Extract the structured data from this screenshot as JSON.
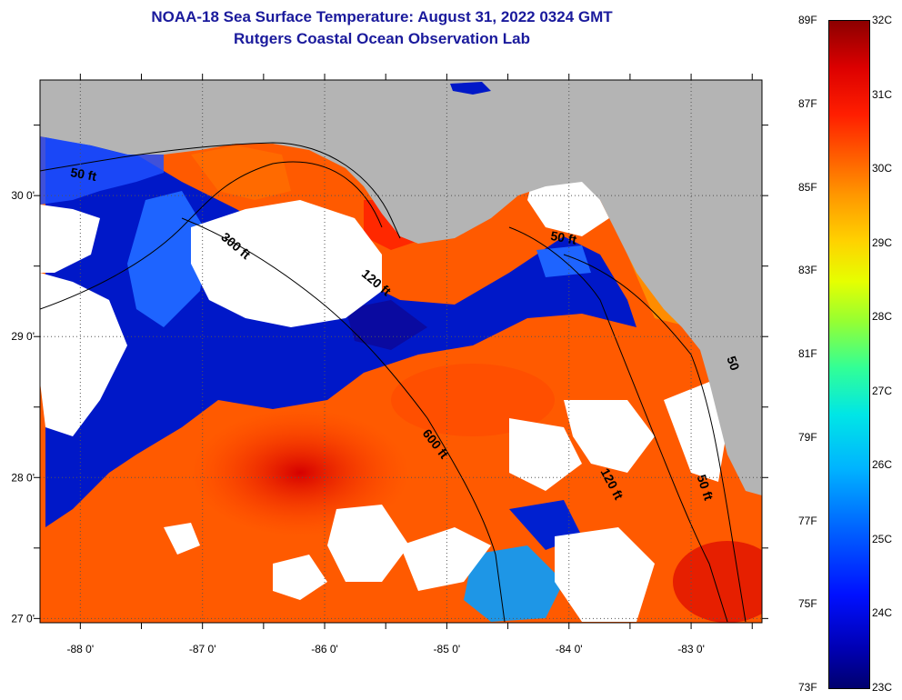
{
  "title_line1": "NOAA-18 Sea Surface Temperature:  August 31, 2022 0324 GMT",
  "title_line2": "Rutgers Coastal Ocean Observation Lab",
  "map": {
    "lon_range": [
      -88.33,
      -82.42
    ],
    "lat_range": [
      26.97,
      30.82
    ],
    "lon_ticks": [
      {
        "value": -88,
        "label": "-88 0'"
      },
      {
        "value": -87,
        "label": "-87 0'"
      },
      {
        "value": -86,
        "label": "-86 0'"
      },
      {
        "value": -85,
        "label": "-85 0'"
      },
      {
        "value": -84,
        "label": "-84 0'"
      },
      {
        "value": -83,
        "label": "-83 0'"
      }
    ],
    "lat_ticks": [
      {
        "value": 30,
        "label": "30 0'"
      },
      {
        "value": 29,
        "label": "29 0'"
      },
      {
        "value": 28,
        "label": "28 0'"
      },
      {
        "value": 27,
        "label": "27 0'"
      }
    ],
    "contour_labels": [
      {
        "text": "50 ft",
        "lon": -87.98,
        "lat": 30.12,
        "angle": 10
      },
      {
        "text": "300 ft",
        "lon": -86.75,
        "lat": 29.62,
        "angle": 40
      },
      {
        "text": "120 ft",
        "lon": -85.6,
        "lat": 29.36,
        "angle": 40
      },
      {
        "text": "600 ft",
        "lon": -85.12,
        "lat": 28.22,
        "angle": 52
      },
      {
        "text": "120 ft",
        "lon": -83.68,
        "lat": 27.94,
        "angle": 62
      },
      {
        "text": "50 ft",
        "lon": -82.92,
        "lat": 27.92,
        "angle": 72
      },
      {
        "text": "50 ft",
        "lon": -84.05,
        "lat": 29.67,
        "angle": 10
      },
      {
        "text": "50",
        "lon": -82.69,
        "lat": 28.8,
        "angle": 70
      }
    ],
    "colors": {
      "land": "#b4b4b4",
      "cloud": "#ffffff",
      "frame": "#000000",
      "grid": "#555555"
    }
  },
  "colorbar": {
    "fahrenheit_labels": [
      "89F",
      "87F",
      "85F",
      "83F",
      "81F",
      "79F",
      "77F",
      "75F",
      "73F"
    ],
    "celsius_labels": [
      "32C",
      "31C",
      "30C",
      "29C",
      "28C",
      "27C",
      "26C",
      "25C",
      "24C",
      "23C"
    ],
    "range_c": [
      23,
      32
    ],
    "range_f": [
      73,
      89
    ]
  }
}
